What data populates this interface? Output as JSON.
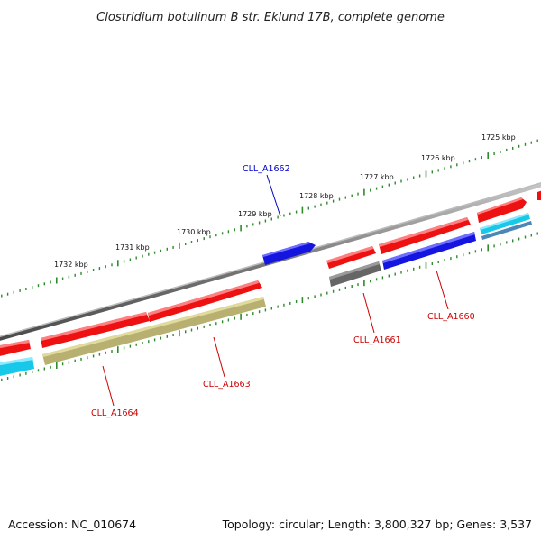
{
  "title": "Clostridium botulinum B str. Eklund 17B, complete genome",
  "footer": {
    "accession": "Accession: NC_010674",
    "summary": "Topology: circular; Length: 3,800,327 bp; Genes: 3,537"
  },
  "colors": {
    "backbone": "#8a8a8a",
    "tick": "#2e8b2e",
    "cds_red": "#ee1111",
    "cds_blue": "#1515e0",
    "cds_cyan": "#18c8e8",
    "cds_steel": "#4a86b8",
    "cds_gray": "#666666",
    "cds_olive": "#b8b070",
    "label_red": "#cc0000",
    "label_blue": "#0000cc"
  },
  "ticks": [
    {
      "label": "1725 kbp"
    },
    {
      "label": "1726 kbp"
    },
    {
      "label": "1727 kbp"
    },
    {
      "label": "1728 kbp"
    },
    {
      "label": "1729 kbp"
    },
    {
      "label": "1730 kbp"
    },
    {
      "label": "1731 kbp"
    },
    {
      "label": "1732 kbp"
    }
  ],
  "gene_labels": [
    {
      "text": "CLL_A1662",
      "color": "blue"
    },
    {
      "text": "CLL_A1660",
      "color": "red"
    },
    {
      "text": "CLL_A1661",
      "color": "red"
    },
    {
      "text": "CLL_A1663",
      "color": "red"
    },
    {
      "text": "CLL_A1664",
      "color": "red"
    }
  ]
}
